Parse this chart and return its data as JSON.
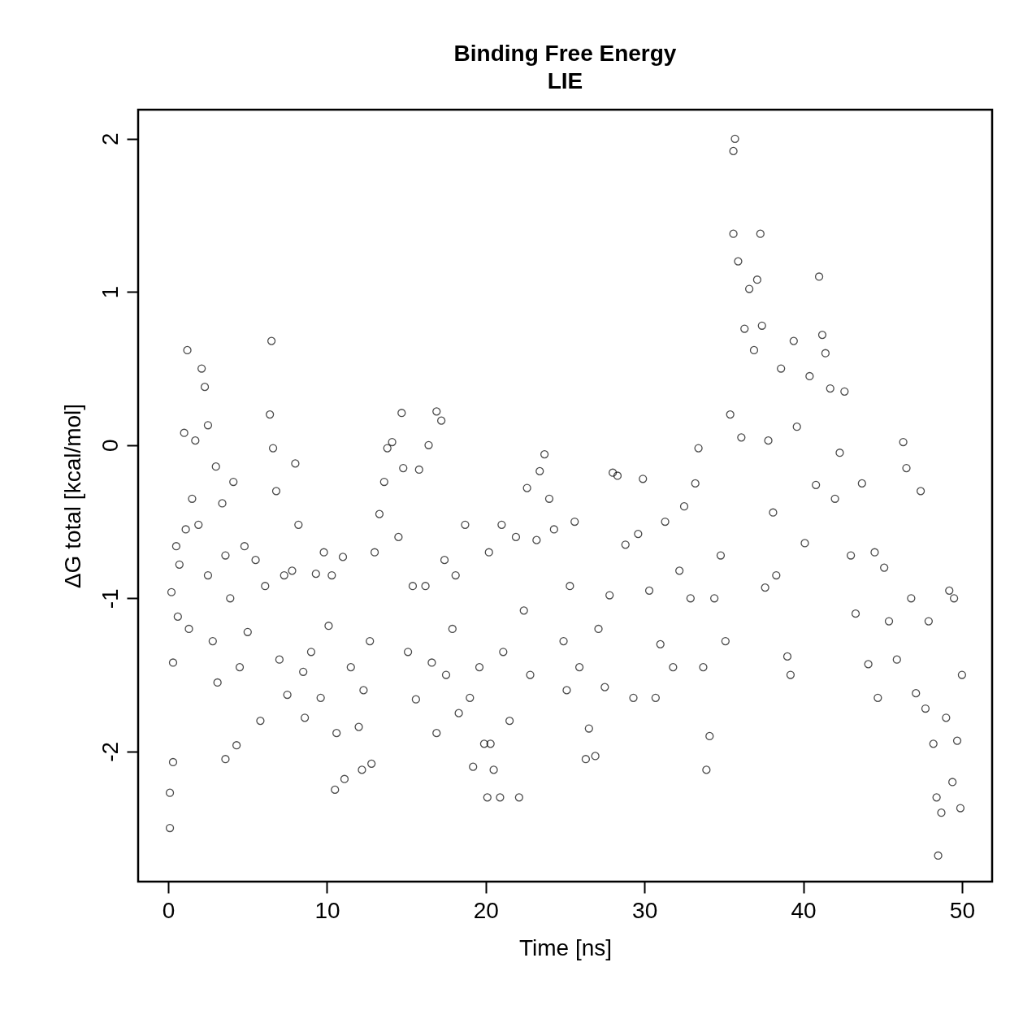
{
  "chart_data": {
    "type": "scatter",
    "title": "Binding Free Energy",
    "subtitle": "LIE",
    "xlabel": "Time [ns]",
    "ylabel": "ΔG total [kcal/mol]",
    "xlim": [
      -1.9,
      51.9
    ],
    "ylim": [
      -2.85,
      2.19
    ],
    "xticks": [
      0,
      10,
      20,
      30,
      40,
      50
    ],
    "yticks": [
      -2,
      -1,
      0,
      1,
      2
    ],
    "grid": false,
    "legend": false,
    "marker": "circle",
    "series": [
      {
        "color": "#000000",
        "x": [
          0.1,
          0.1,
          0.3,
          0.2,
          0.3,
          0.5,
          0.6,
          0.7,
          1.0,
          1.2,
          1.1,
          1.3,
          1.5,
          1.7,
          1.9,
          2.1,
          2.3,
          2.5,
          2.5,
          2.8,
          3.0,
          3.1,
          3.4,
          3.6,
          3.6,
          3.9,
          4.1,
          4.3,
          4.5,
          4.8,
          5.0,
          5.5,
          5.8,
          6.1,
          6.4,
          6.5,
          6.6,
          6.8,
          7.0,
          7.3,
          7.5,
          7.8,
          8.0,
          8.2,
          8.5,
          8.6,
          9.0,
          9.3,
          9.6,
          9.8,
          10.1,
          10.3,
          10.5,
          10.6,
          11.0,
          11.1,
          11.5,
          12.0,
          12.2,
          12.3,
          12.7,
          12.8,
          13.0,
          13.3,
          13.6,
          13.8,
          14.1,
          14.5,
          14.7,
          14.8,
          15.1,
          15.4,
          15.6,
          15.8,
          16.2,
          16.4,
          16.6,
          16.9,
          16.9,
          17.2,
          17.4,
          17.5,
          17.9,
          18.1,
          18.3,
          18.7,
          19.0,
          19.2,
          19.6,
          19.9,
          20.1,
          20.2,
          20.3,
          20.5,
          20.9,
          21.0,
          21.1,
          21.5,
          21.9,
          22.1,
          22.4,
          22.6,
          22.8,
          23.2,
          23.4,
          23.7,
          24.0,
          24.3,
          24.9,
          25.1,
          25.3,
          25.6,
          25.9,
          26.3,
          26.5,
          26.9,
          27.1,
          27.5,
          27.8,
          28.0,
          28.3,
          28.8,
          29.3,
          29.6,
          29.9,
          30.3,
          30.7,
          31.0,
          31.3,
          31.8,
          32.2,
          32.5,
          32.9,
          33.2,
          33.4,
          33.7,
          33.9,
          34.1,
          34.4,
          34.8,
          35.1,
          35.4,
          35.6,
          35.7,
          35.9,
          35.6,
          36.1,
          36.3,
          36.6,
          36.9,
          37.1,
          37.3,
          37.4,
          37.6,
          37.8,
          38.1,
          38.3,
          38.6,
          39.0,
          39.2,
          39.4,
          39.6,
          40.1,
          40.4,
          40.8,
          41.0,
          41.2,
          41.4,
          41.7,
          42.0,
          42.3,
          42.6,
          43.0,
          43.3,
          43.7,
          44.1,
          44.5,
          44.7,
          45.1,
          45.4,
          45.9,
          46.3,
          46.5,
          46.8,
          47.1,
          47.4,
          47.7,
          47.9,
          48.2,
          48.4,
          48.5,
          48.7,
          49.0,
          49.2,
          49.4,
          49.5,
          49.7,
          49.9,
          50.0
        ],
        "values": [
          -2.5,
          -2.27,
          -2.07,
          -0.96,
          -1.42,
          -0.66,
          -1.12,
          -0.78,
          0.08,
          0.62,
          -0.55,
          -1.2,
          -0.35,
          0.03,
          -0.52,
          0.5,
          0.38,
          0.13,
          -0.85,
          -1.28,
          -0.14,
          -1.55,
          -0.38,
          -2.05,
          -0.72,
          -1.0,
          -0.24,
          -1.96,
          -1.45,
          -0.66,
          -1.22,
          -0.75,
          -1.8,
          -0.92,
          0.2,
          0.68,
          -0.02,
          -0.3,
          -1.4,
          -0.85,
          -1.63,
          -0.82,
          -0.12,
          -0.52,
          -1.48,
          -1.78,
          -1.35,
          -0.84,
          -1.65,
          -0.7,
          -1.18,
          -0.85,
          -2.25,
          -1.88,
          -0.73,
          -2.18,
          -1.45,
          -1.84,
          -2.12,
          -1.6,
          -1.28,
          -2.08,
          -0.7,
          -0.45,
          -0.24,
          -0.02,
          0.02,
          -0.6,
          0.21,
          -0.15,
          -1.35,
          -0.92,
          -1.66,
          -0.16,
          -0.92,
          0.0,
          -1.42,
          -1.88,
          0.22,
          0.16,
          -0.75,
          -1.5,
          -1.2,
          -0.85,
          -1.75,
          -0.52,
          -1.65,
          -2.1,
          -1.45,
          -1.95,
          -2.3,
          -0.7,
          -1.95,
          -2.12,
          -2.3,
          -0.52,
          -1.35,
          -1.8,
          -0.6,
          -2.3,
          -1.08,
          -0.28,
          -1.5,
          -0.62,
          -0.17,
          -0.06,
          -0.35,
          -0.55,
          -1.28,
          -1.6,
          -0.92,
          -0.5,
          -1.45,
          -2.05,
          -1.85,
          -2.03,
          -1.2,
          -1.58,
          -0.98,
          -0.18,
          -0.2,
          -0.65,
          -1.65,
          -0.58,
          -0.22,
          -0.95,
          -1.65,
          -1.3,
          -0.5,
          -1.45,
          -0.82,
          -0.4,
          -1.0,
          -0.25,
          -0.02,
          -1.45,
          -2.12,
          -1.9,
          -1.0,
          -0.72,
          -1.28,
          0.2,
          1.92,
          2.0,
          1.2,
          1.38,
          0.05,
          0.76,
          1.02,
          0.62,
          1.08,
          1.38,
          0.78,
          -0.93,
          0.03,
          -0.44,
          -0.85,
          0.5,
          -1.38,
          -1.5,
          0.68,
          0.12,
          -0.64,
          0.45,
          -0.26,
          1.1,
          0.72,
          0.6,
          0.37,
          -0.35,
          -0.05,
          0.35,
          -0.72,
          -1.1,
          -0.25,
          -1.43,
          -0.7,
          -1.65,
          -0.8,
          -1.15,
          -1.4,
          0.02,
          -0.15,
          -1.0,
          -1.62,
          -0.3,
          -1.72,
          -1.15,
          -1.95,
          -2.3,
          -2.68,
          -2.4,
          -1.78,
          -0.95,
          -2.2,
          -1.0,
          -1.93,
          -2.37,
          -1.5
        ]
      }
    ]
  }
}
